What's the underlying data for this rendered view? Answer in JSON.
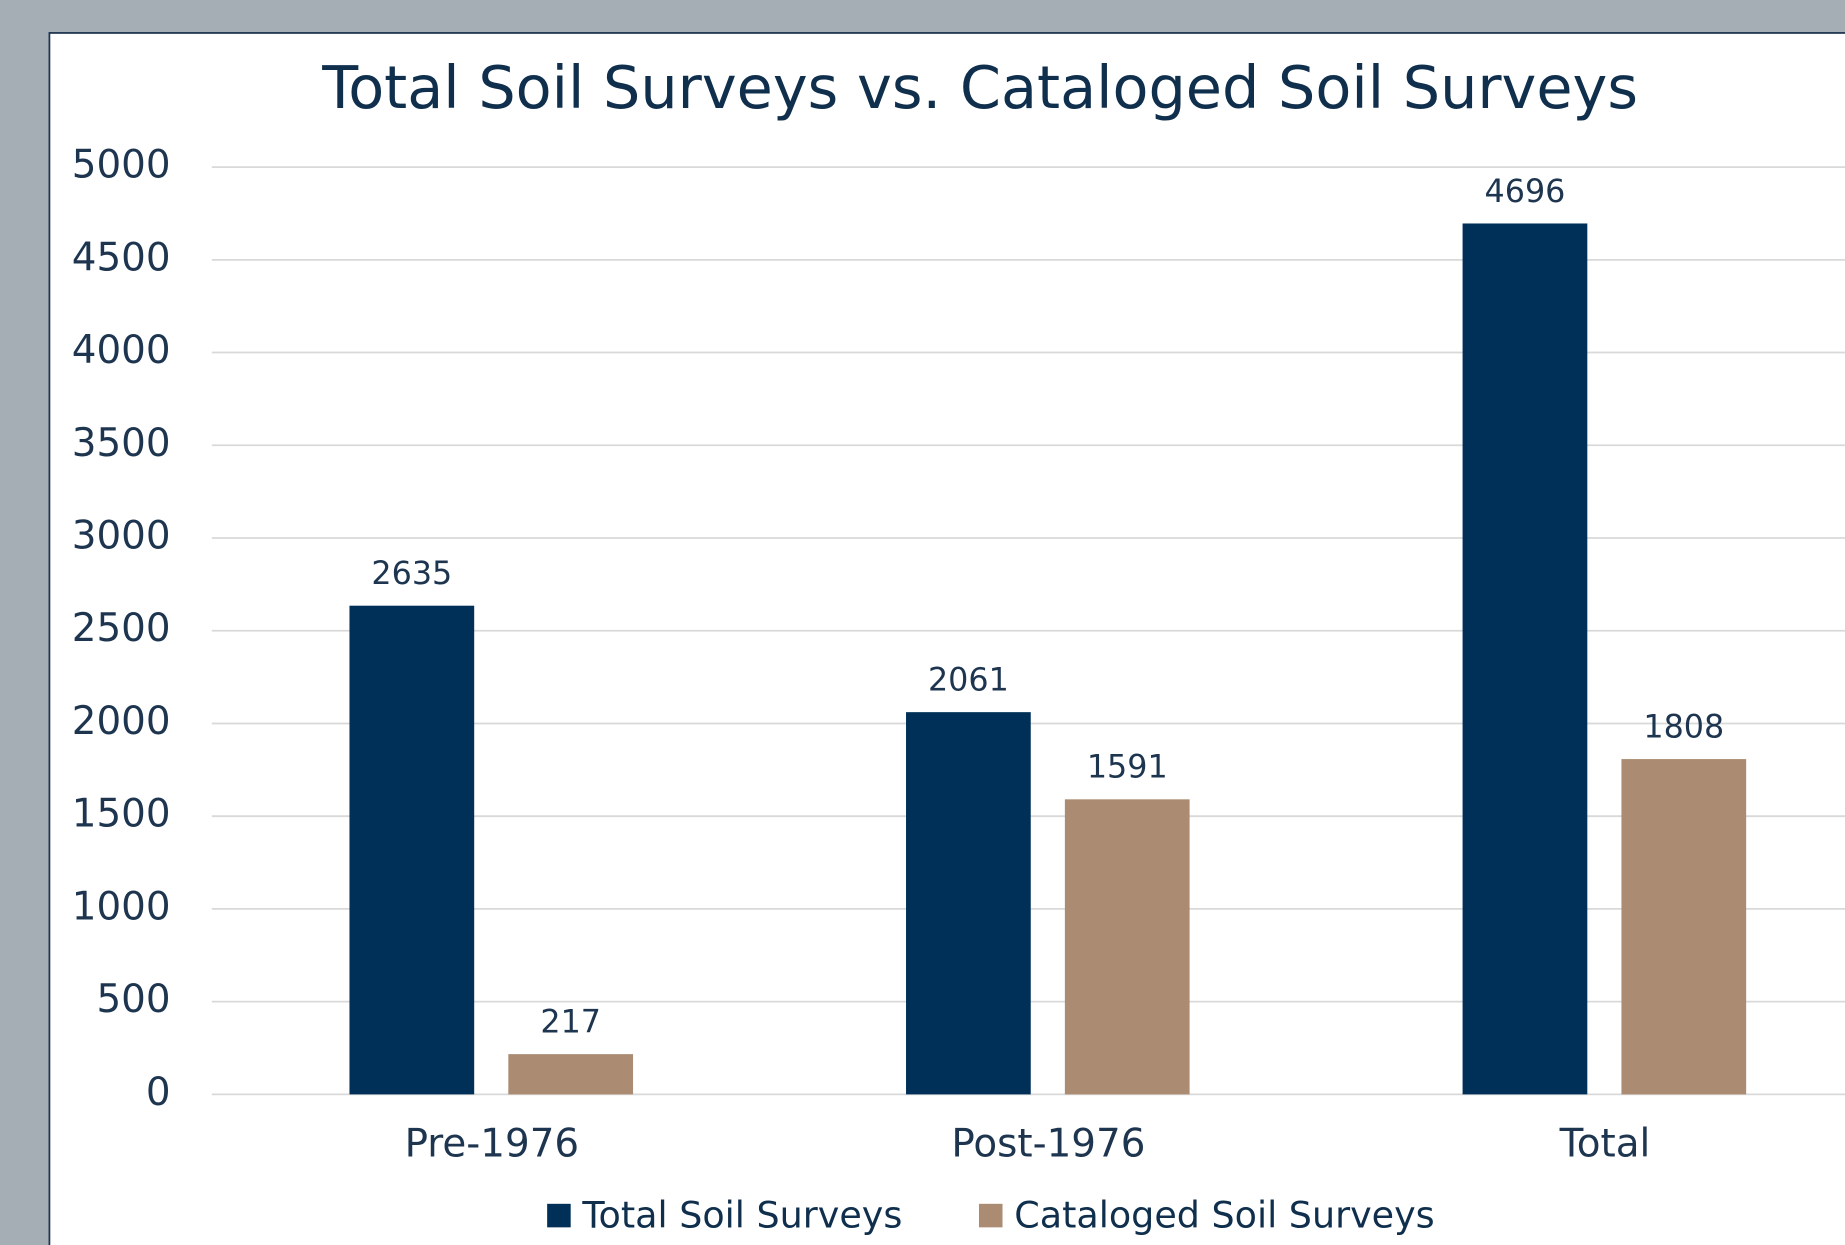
{
  "chart_data": {
    "type": "bar",
    "title": "Total Soil Surveys vs. Cataloged Soil Surveys",
    "categories": [
      "Pre-1976",
      "Post-1976",
      "Total"
    ],
    "series": [
      {
        "name": "Total Soil Surveys",
        "color": "#003057",
        "values": [
          2635,
          2061,
          4696
        ]
      },
      {
        "name": "Cataloged Soil Surveys",
        "color": "#ab8c72",
        "values": [
          217,
          1591,
          1808
        ]
      }
    ],
    "ylim": [
      0,
      5000
    ],
    "yticks": [
      0,
      500,
      1000,
      1500,
      2000,
      2500,
      3000,
      3500,
      4000,
      4500,
      5000
    ],
    "grid": true,
    "legend": "bottom"
  }
}
